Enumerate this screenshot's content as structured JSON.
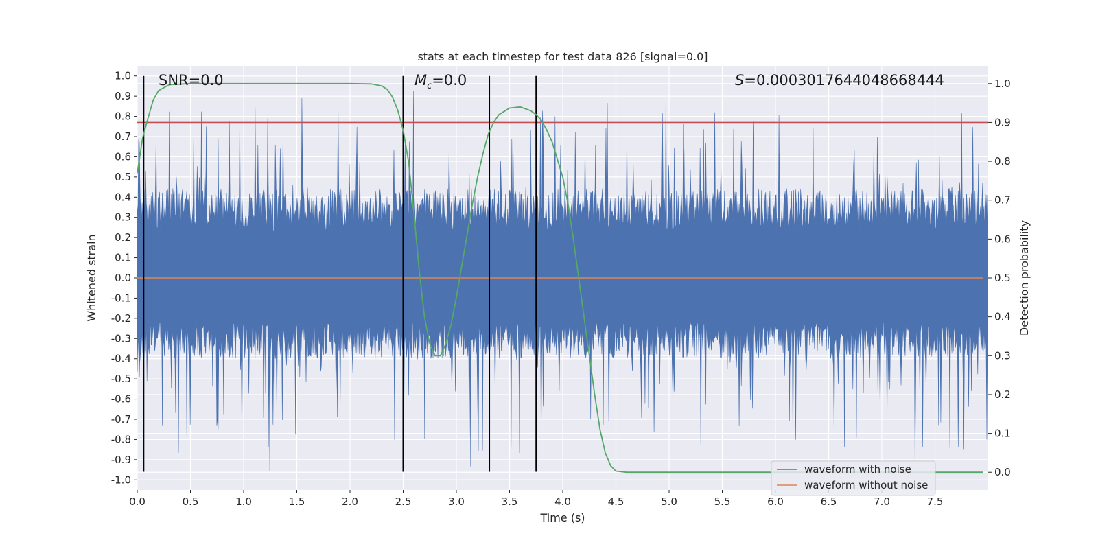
{
  "chart_data": {
    "type": "line",
    "title": "stats at each timestep for test data 826 [signal=0.0]",
    "xlabel": "Time (s)",
    "ylabel": "Whitened strain",
    "y2label": "Detection probability",
    "xlim": [
      0.0,
      8.0
    ],
    "ylim": [
      -1.05,
      1.05
    ],
    "y2lim": [
      -0.0455,
      1.0455
    ],
    "xticks": [
      "0.0",
      "0.5",
      "1.0",
      "1.5",
      "2.0",
      "2.5",
      "3.0",
      "3.5",
      "4.0",
      "4.5",
      "5.0",
      "5.5",
      "6.0",
      "6.5",
      "7.0",
      "7.5"
    ],
    "yticks": [
      "1.0",
      "0.9",
      "0.8",
      "0.7",
      "0.6",
      "0.5",
      "0.4",
      "0.3",
      "0.2",
      "0.1",
      "0.0",
      "-0.1",
      "-0.2",
      "-0.3",
      "-0.4",
      "-0.5",
      "-0.6",
      "-0.7",
      "-0.8",
      "-0.9",
      "-1.0"
    ],
    "y2ticks": [
      "1.0",
      "0.9",
      "0.8",
      "0.7",
      "0.6",
      "0.5",
      "0.4",
      "0.3",
      "0.2",
      "0.1",
      "0.0"
    ],
    "annotations": {
      "snr": "SNR=0.0",
      "mc_symbol": "M",
      "mc_sub": "c",
      "mc_value": "=0.0",
      "s_symbol": "S",
      "s_value": "=0.0003017644048668444"
    },
    "threshold": 0.9,
    "vertical_lines": [
      0.06,
      2.5,
      3.31,
      3.75
    ],
    "noise": {
      "duration": 8.0,
      "typical_max": 0.42,
      "typical_min": -0.38,
      "peak_max": 1.0,
      "peak_min": -0.96
    },
    "series": [
      {
        "name": "waveform with noise",
        "color": "#4c72b0"
      },
      {
        "name": "waveform without noise",
        "color": "#dd8452",
        "values": "zero"
      },
      {
        "name": "detection probability",
        "color": "#55a868",
        "x": [
          0.0,
          0.05,
          0.1,
          0.15,
          0.2,
          0.3,
          0.5,
          1.0,
          2.0,
          2.2,
          2.3,
          2.35,
          2.4,
          2.45,
          2.5,
          2.55,
          2.6,
          2.65,
          2.7,
          2.75,
          2.8,
          2.85,
          2.9,
          2.95,
          3.0,
          3.05,
          3.1,
          3.15,
          3.2,
          3.25,
          3.3,
          3.35,
          3.4,
          3.5,
          3.6,
          3.7,
          3.75,
          3.8,
          3.85,
          3.9,
          4.0,
          4.05,
          4.1,
          4.15,
          4.2,
          4.25,
          4.3,
          4.35,
          4.4,
          4.45,
          4.5,
          4.6,
          5.0,
          6.0,
          7.0,
          7.95
        ],
        "values": [
          0.77,
          0.86,
          0.91,
          0.958,
          0.982,
          0.997,
          1.0,
          1.0,
          1.0,
          0.999,
          0.994,
          0.985,
          0.965,
          0.93,
          0.88,
          0.8,
          0.67,
          0.52,
          0.4,
          0.33,
          0.3,
          0.3,
          0.33,
          0.38,
          0.45,
          0.53,
          0.61,
          0.69,
          0.76,
          0.82,
          0.87,
          0.9,
          0.92,
          0.937,
          0.94,
          0.93,
          0.92,
          0.905,
          0.88,
          0.85,
          0.76,
          0.69,
          0.6,
          0.5,
          0.4,
          0.3,
          0.2,
          0.11,
          0.05,
          0.017,
          0.003,
          0.0,
          0.0,
          0.0,
          0.0,
          0.0
        ]
      }
    ],
    "legend": [
      "waveform with noise",
      "waveform without noise"
    ],
    "legend_position": "bottom-right",
    "grid": true
  }
}
